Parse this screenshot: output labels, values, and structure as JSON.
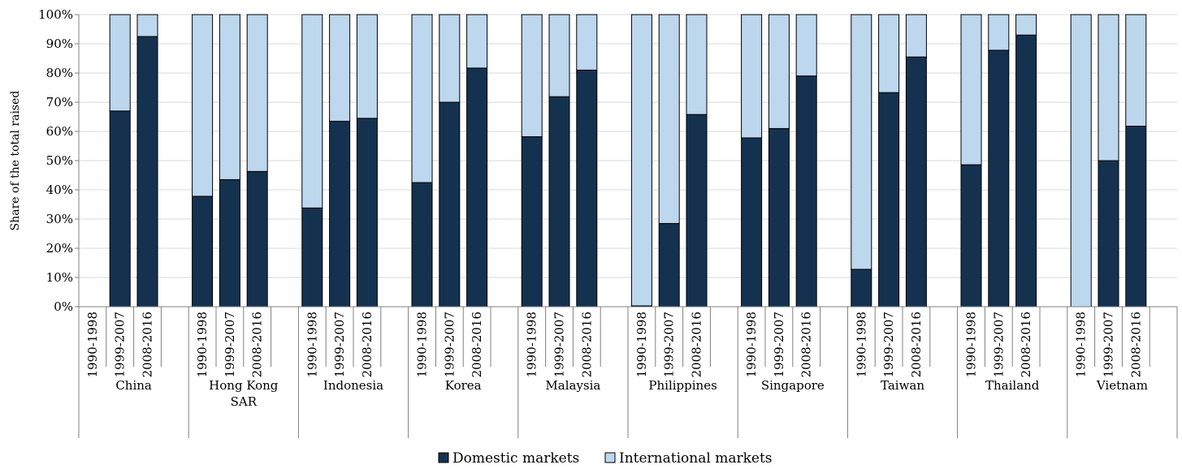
{
  "chart_data": {
    "type": "bar",
    "stacked": true,
    "ylabel": "Share of the total raised",
    "ylim": [
      0,
      100
    ],
    "yticks": [
      "0%",
      "10%",
      "20%",
      "30%",
      "40%",
      "50%",
      "60%",
      "70%",
      "80%",
      "90%",
      "100%"
    ],
    "grid": true,
    "legend_position": "bottom",
    "periods": [
      "1990-1998",
      "1999-2007",
      "2008-2016"
    ],
    "groups": [
      {
        "name": "China",
        "name_lines": [
          "China"
        ],
        "domestic": [
          null,
          67,
          92.5
        ],
        "international": [
          null,
          33,
          7.5
        ]
      },
      {
        "name": "Hong Kong SAR",
        "name_lines": [
          "Hong Kong",
          "SAR"
        ],
        "domestic": [
          37.8,
          43.5,
          46.3
        ],
        "international": [
          62.2,
          56.5,
          53.7
        ]
      },
      {
        "name": "Indonesia",
        "name_lines": [
          "Indonesia"
        ],
        "domestic": [
          33.8,
          63.5,
          64.5
        ],
        "international": [
          66.2,
          36.5,
          35.5
        ]
      },
      {
        "name": "Korea",
        "name_lines": [
          "Korea"
        ],
        "domestic": [
          42.5,
          70,
          81.7
        ],
        "international": [
          57.5,
          30,
          18.3
        ]
      },
      {
        "name": "Malaysia",
        "name_lines": [
          "Malaysia"
        ],
        "domestic": [
          58.2,
          71.9,
          81
        ],
        "international": [
          41.8,
          28.1,
          19
        ]
      },
      {
        "name": "Philippines",
        "name_lines": [
          "Philippines"
        ],
        "domestic": [
          0.3,
          28.5,
          65.8
        ],
        "international": [
          99.7,
          71.5,
          34.2
        ]
      },
      {
        "name": "Singapore",
        "name_lines": [
          "Singapore"
        ],
        "domestic": [
          57.8,
          61,
          79
        ],
        "international": [
          42.2,
          39,
          21
        ]
      },
      {
        "name": "Taiwan",
        "name_lines": [
          "Taiwan"
        ],
        "domestic": [
          12.8,
          73.3,
          85.5
        ],
        "international": [
          87.2,
          26.7,
          14.5
        ]
      },
      {
        "name": "Thailand",
        "name_lines": [
          "Thailand"
        ],
        "domestic": [
          48.6,
          87.8,
          93
        ],
        "international": [
          51.4,
          12.2,
          7
        ]
      },
      {
        "name": "Vietnam",
        "name_lines": [
          "Vietnam"
        ],
        "domestic": [
          0,
          50,
          61.8
        ],
        "international": [
          100,
          50,
          38.2
        ]
      }
    ],
    "series": [
      {
        "name": "Domestic markets",
        "key": "domestic",
        "color": "#14324f"
      },
      {
        "name": "International markets",
        "key": "international",
        "color": "#bdd7ee"
      }
    ],
    "gridline_color": "#d9d9d9"
  }
}
